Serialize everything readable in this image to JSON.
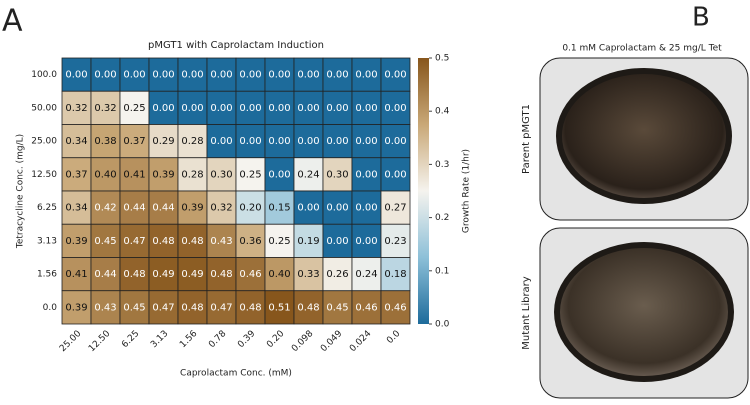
{
  "panel_a": {
    "label": "A"
  },
  "chart_data": {
    "type": "heatmap",
    "title": "pMGT1 with Caprolactam Induction",
    "x_label": "Caprolactam Conc. (mM)",
    "y_label": "Tetracycline Conc. (mg/L)",
    "colorbar_label": "Growth Rate (1/hr)",
    "x_categories": [
      "25.00",
      "12.50",
      "6.25",
      "3.13",
      "1.56",
      "0.78",
      "0.39",
      "0.20",
      "0.098",
      "0.049",
      "0.024",
      "0.0"
    ],
    "y_categories": [
      "100.0",
      "50.00",
      "25.00",
      "12.50",
      "6.25",
      "3.13",
      "1.56",
      "0.0"
    ],
    "values": [
      [
        0,
        0,
        0,
        0,
        0,
        0,
        0,
        0,
        0,
        0,
        0,
        0
      ],
      [
        0.32,
        0.32,
        0.25,
        0,
        0,
        0,
        0,
        0,
        0,
        0,
        0,
        0
      ],
      [
        0.34,
        0.38,
        0.37,
        0.29,
        0.28,
        0,
        0,
        0,
        0,
        0,
        0,
        0
      ],
      [
        0.37,
        0.4,
        0.41,
        0.39,
        0.28,
        0.3,
        0.25,
        0,
        0.24,
        0.3,
        0,
        0
      ],
      [
        0.34,
        0.42,
        0.44,
        0.44,
        0.39,
        0.32,
        0.2,
        0.15,
        0,
        0,
        0,
        0.27
      ],
      [
        0.39,
        0.45,
        0.47,
        0.48,
        0.48,
        0.43,
        0.36,
        0.25,
        0.19,
        0,
        0,
        0.23
      ],
      [
        0.41,
        0.44,
        0.48,
        0.49,
        0.49,
        0.48,
        0.46,
        0.4,
        0.33,
        0.26,
        0.24,
        0.18
      ],
      [
        0.39,
        0.43,
        0.45,
        0.47,
        0.48,
        0.47,
        0.48,
        0.51,
        0.48,
        0.45,
        0.46,
        0.46
      ]
    ],
    "value_labels": [
      [
        "0.00",
        "0.00",
        "0.00",
        "0.00",
        "0.00",
        "0.00",
        "0.00",
        "0.00",
        "0.00",
        "0.00",
        "0.00",
        "0.00"
      ],
      [
        "0.32",
        "0.32",
        "0.25",
        "0.00",
        "0.00",
        "0.00",
        "0.00",
        "0.00",
        "0.00",
        "0.00",
        "0.00",
        "0.00"
      ],
      [
        "0.34",
        "0.38",
        "0.37",
        "0.29",
        "0.28",
        "0.00",
        "0.00",
        "0.00",
        "0.00",
        "0.00",
        "0.00",
        "0.00"
      ],
      [
        "0.37",
        "0.40",
        "0.41",
        "0.39",
        "0.28",
        "0.30",
        "0.25",
        "0.00",
        "0.24",
        "0.30",
        "0.00",
        "0.00"
      ],
      [
        "0.34",
        "0.42",
        "0.44",
        "0.44",
        "0.39",
        "0.32",
        "0.20",
        "0.15",
        "0.00",
        "0.00",
        "0.00",
        "0.27"
      ],
      [
        "0.39",
        "0.45",
        "0.47",
        "0.48",
        "0.48",
        "0.43",
        "0.36",
        "0.25",
        "0.19",
        "0.00",
        "0.00",
        "0.23"
      ],
      [
        "0.41",
        "0.44",
        "0.48",
        "0.49",
        "0.49",
        "0.48",
        "0.46",
        "0.40",
        "0.33",
        "0.26",
        "0.24",
        "0.18"
      ],
      [
        "0.39",
        "0.43",
        "0.45",
        "0.47",
        "0.48",
        "0.47",
        "0.48",
        "0.51",
        "0.48",
        "0.45",
        "0.46",
        "0.46"
      ]
    ],
    "vlim": [
      0,
      0.5
    ],
    "colorbar_ticks": [
      {
        "value": 0,
        "label": "0.0"
      },
      0.1,
      0.2,
      0.3,
      0.4,
      0.5
    ],
    "colormap": [
      "#1d6b9b",
      "#8dc0d8",
      "#f5f3ee",
      "#c9a877",
      "#87561c"
    ]
  },
  "panel_b": {
    "label": "B",
    "caption": "0.1 mM Caprolactam & 25 mg/L Tet",
    "plates": [
      "Parent pMGT1",
      "Mutant Library"
    ]
  }
}
